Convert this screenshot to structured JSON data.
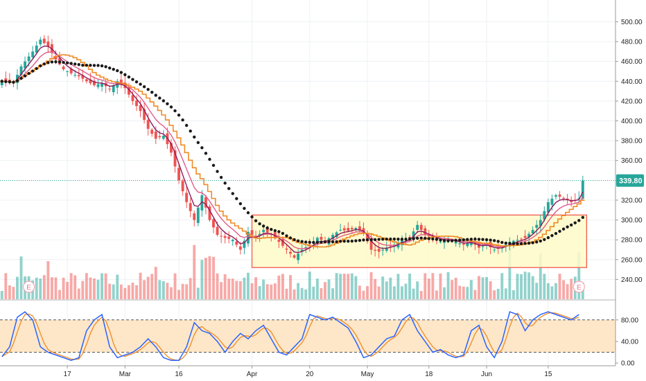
{
  "chart_data": [
    {
      "panel": "price",
      "type": "candlestick",
      "ylim": [
        220,
        515
      ],
      "yticks": [
        "240.00",
        "260.00",
        "280.00",
        "300.00",
        "320.00",
        "340.00",
        "360.00",
        "380.00",
        "400.00",
        "420.00",
        "440.00",
        "460.00",
        "480.00",
        "500.00"
      ],
      "last_price": "339.80",
      "last_value": 339.8,
      "close_path": [
        [
          0,
          440
        ],
        [
          3,
          438
        ],
        [
          5,
          455
        ],
        [
          8,
          470
        ],
        [
          10,
          482
        ],
        [
          12,
          475
        ],
        [
          14,
          462
        ],
        [
          16,
          452
        ],
        [
          18,
          448
        ],
        [
          20,
          445
        ],
        [
          22,
          440
        ],
        [
          24,
          436
        ],
        [
          26,
          438
        ],
        [
          28,
          432
        ],
        [
          30,
          440
        ],
        [
          32,
          433
        ],
        [
          34,
          420
        ],
        [
          36,
          410
        ],
        [
          38,
          392
        ],
        [
          40,
          382
        ],
        [
          42,
          385
        ],
        [
          44,
          368
        ],
        [
          46,
          340
        ],
        [
          48,
          318
        ],
        [
          50,
          300
        ],
        [
          52,
          325
        ],
        [
          54,
          300
        ],
        [
          56,
          285
        ],
        [
          58,
          282
        ],
        [
          60,
          280
        ],
        [
          62,
          270
        ],
        [
          64,
          288
        ],
        [
          66,
          282
        ],
        [
          68,
          290
        ],
        [
          70,
          285
        ],
        [
          72,
          278
        ],
        [
          74,
          270
        ],
        [
          76,
          262
        ],
        [
          78,
          270
        ],
        [
          80,
          275
        ],
        [
          82,
          282
        ],
        [
          84,
          278
        ],
        [
          86,
          285
        ],
        [
          88,
          290
        ],
        [
          90,
          289
        ],
        [
          92,
          292
        ],
        [
          94,
          287
        ],
        [
          96,
          270
        ],
        [
          98,
          268
        ],
        [
          100,
          272
        ],
        [
          102,
          275
        ],
        [
          104,
          280
        ],
        [
          106,
          282
        ],
        [
          108,
          295
        ],
        [
          110,
          285
        ],
        [
          112,
          282
        ],
        [
          114,
          278
        ],
        [
          116,
          280
        ],
        [
          118,
          278
        ],
        [
          120,
          275
        ],
        [
          122,
          278
        ],
        [
          124,
          272
        ],
        [
          126,
          275
        ],
        [
          128,
          270
        ],
        [
          130,
          272
        ],
        [
          132,
          278
        ],
        [
          134,
          280
        ],
        [
          136,
          282
        ],
        [
          138,
          290
        ],
        [
          140,
          300
        ],
        [
          142,
          318
        ],
        [
          144,
          325
        ],
        [
          146,
          322
        ],
        [
          148,
          318
        ],
        [
          150,
          322
        ],
        [
          151,
          339.8
        ]
      ],
      "ema_fast_color": "#8b1a5e",
      "ema_mid_color": "#e05a8a",
      "sma_orange_color": "#f08a24",
      "sma_dots_color": "#1a1a1a",
      "up_color": "#26a69a",
      "down_color": "#ef5350",
      "range_box": {
        "from_bar": 65,
        "to_bar": 152,
        "low": 252,
        "high": 305,
        "fill": "#fffac8",
        "border": "#f05a50"
      },
      "earnings_label": "E",
      "earnings_bars": [
        7,
        150
      ]
    },
    {
      "panel": "stochastic",
      "type": "line",
      "ylim": [
        -5,
        108
      ],
      "yticks": [
        "0.00",
        "40.00",
        "80.00"
      ],
      "band": [
        20,
        80
      ],
      "band_fill": "#fde7c8",
      "k_color": "#2962ff",
      "d_color": "#f08a24",
      "k_path": [
        [
          0,
          12
        ],
        [
          2,
          30
        ],
        [
          4,
          85
        ],
        [
          6,
          95
        ],
        [
          8,
          80
        ],
        [
          10,
          30
        ],
        [
          12,
          20
        ],
        [
          14,
          15
        ],
        [
          16,
          10
        ],
        [
          18,
          5
        ],
        [
          20,
          10
        ],
        [
          22,
          60
        ],
        [
          24,
          80
        ],
        [
          26,
          90
        ],
        [
          28,
          30
        ],
        [
          30,
          10
        ],
        [
          32,
          15
        ],
        [
          34,
          20
        ],
        [
          36,
          30
        ],
        [
          38,
          45
        ],
        [
          40,
          30
        ],
        [
          42,
          10
        ],
        [
          44,
          5
        ],
        [
          46,
          5
        ],
        [
          48,
          30
        ],
        [
          50,
          75
        ],
        [
          52,
          60
        ],
        [
          54,
          55
        ],
        [
          56,
          40
        ],
        [
          58,
          20
        ],
        [
          60,
          40
        ],
        [
          62,
          55
        ],
        [
          64,
          45
        ],
        [
          66,
          60
        ],
        [
          68,
          70
        ],
        [
          70,
          45
        ],
        [
          72,
          20
        ],
        [
          74,
          15
        ],
        [
          76,
          30
        ],
        [
          78,
          45
        ],
        [
          80,
          90
        ],
        [
          82,
          85
        ],
        [
          84,
          80
        ],
        [
          86,
          85
        ],
        [
          88,
          75
        ],
        [
          90,
          65
        ],
        [
          92,
          40
        ],
        [
          94,
          10
        ],
        [
          96,
          15
        ],
        [
          98,
          30
        ],
        [
          100,
          45
        ],
        [
          102,
          50
        ],
        [
          104,
          80
        ],
        [
          106,
          90
        ],
        [
          108,
          60
        ],
        [
          110,
          40
        ],
        [
          112,
          20
        ],
        [
          114,
          25
        ],
        [
          116,
          15
        ],
        [
          118,
          10
        ],
        [
          120,
          15
        ],
        [
          122,
          60
        ],
        [
          124,
          70
        ],
        [
          126,
          30
        ],
        [
          128,
          10
        ],
        [
          130,
          40
        ],
        [
          132,
          95
        ],
        [
          134,
          90
        ],
        [
          136,
          60
        ],
        [
          138,
          80
        ],
        [
          140,
          90
        ],
        [
          142,
          95
        ],
        [
          144,
          90
        ],
        [
          146,
          85
        ],
        [
          148,
          80
        ],
        [
          150,
          90
        ]
      ]
    }
  ],
  "x_axis": {
    "bars": 160,
    "labels": [
      {
        "bar": 17,
        "text": "17"
      },
      {
        "bar": 32,
        "text": "Mar"
      },
      {
        "bar": 46,
        "text": "16"
      },
      {
        "bar": 65,
        "text": "Apr"
      },
      {
        "bar": 80,
        "text": "20"
      },
      {
        "bar": 95,
        "text": "May"
      },
      {
        "bar": 111,
        "text": "18"
      },
      {
        "bar": 126,
        "text": "Jun"
      },
      {
        "bar": 142,
        "text": "15"
      }
    ]
  }
}
